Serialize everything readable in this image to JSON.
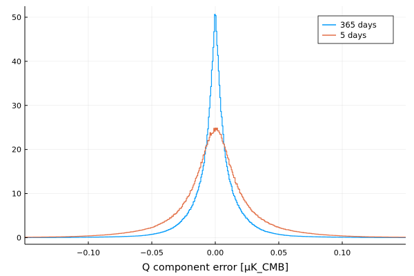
{
  "chart_data": {
    "type": "line",
    "title": "",
    "xlabel": "Q component error [μK_CMB]",
    "ylabel": "",
    "xlim": [
      -0.15,
      0.15
    ],
    "ylim": [
      -1.5,
      52.5
    ],
    "x_ticks": [
      -0.1,
      -0.05,
      0.0,
      0.05,
      0.1
    ],
    "x_tick_labels": [
      "−0.10",
      "−0.05",
      "0.00",
      "0.05",
      "0.10"
    ],
    "y_ticks": [
      0,
      10,
      20,
      30,
      40,
      50
    ],
    "y_tick_labels": [
      "0",
      "10",
      "20",
      "30",
      "40",
      "50"
    ],
    "grid": true,
    "legend_position": "top-right",
    "series": [
      {
        "name": "365 days",
        "color": "#009AFA",
        "scale": 0.0085,
        "x": [
          -0.15,
          -0.12,
          -0.1,
          -0.08,
          -0.06,
          -0.05,
          -0.04,
          -0.03,
          -0.025,
          -0.02,
          -0.015,
          -0.01,
          -0.008,
          -0.006,
          -0.004,
          -0.002,
          -0.001,
          0.0,
          0.001,
          0.002,
          0.004,
          0.006,
          0.008,
          0.01,
          0.015,
          0.02,
          0.025,
          0.03,
          0.04,
          0.05,
          0.06,
          0.08,
          0.1,
          0.12,
          0.15
        ],
        "y": [
          0.01,
          0.04,
          0.1,
          0.2,
          0.4,
          0.75,
          1.4,
          2.9,
          4.3,
          6.3,
          9.4,
          15.0,
          18.8,
          24.0,
          31.0,
          41.2,
          47.0,
          50.8,
          47.0,
          41.2,
          31.0,
          24.0,
          18.8,
          15.0,
          9.4,
          6.3,
          4.3,
          2.9,
          1.4,
          0.75,
          0.4,
          0.2,
          0.1,
          0.04,
          0.01
        ]
      },
      {
        "name": "5 days",
        "color": "#E26F46",
        "scale": 0.0175,
        "x": [
          -0.15,
          -0.12,
          -0.1,
          -0.08,
          -0.06,
          -0.05,
          -0.04,
          -0.03,
          -0.025,
          -0.02,
          -0.015,
          -0.01,
          -0.008,
          -0.006,
          -0.004,
          -0.002,
          0.0,
          0.002,
          0.004,
          0.006,
          0.008,
          0.01,
          0.015,
          0.02,
          0.025,
          0.03,
          0.04,
          0.05,
          0.06,
          0.08,
          0.1,
          0.12,
          0.15
        ],
        "y": [
          0.1,
          0.2,
          0.4,
          0.8,
          1.6,
          2.3,
          3.6,
          5.8,
          7.6,
          10.1,
          13.5,
          17.9,
          19.9,
          21.8,
          23.2,
          24.2,
          24.4,
          24.2,
          23.2,
          21.8,
          19.9,
          17.9,
          13.5,
          10.1,
          7.6,
          5.8,
          3.6,
          2.3,
          1.6,
          0.8,
          0.4,
          0.2,
          0.1
        ]
      }
    ]
  }
}
